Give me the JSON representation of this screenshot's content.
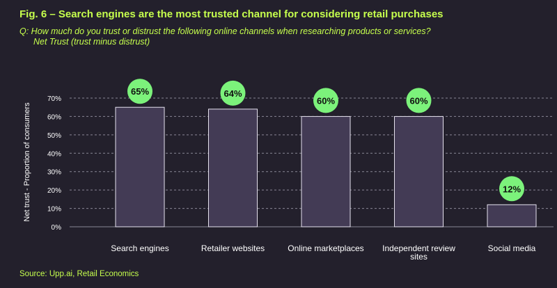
{
  "title": "Fig. 6 – Search engines are the most trusted channel for considering retail purchases",
  "question": {
    "line1": "Q: How much do you trust or distrust the following online channels when researching products or services?",
    "line2": "Net Trust (trust minus distrust)"
  },
  "source": "Source: Upp.ai, Retail Economics",
  "colors": {
    "background": "#23202c",
    "bar": "#433b55",
    "bar_stroke": "#e6e2ee",
    "badge": "#7cf27b",
    "accent_text": "#c6ff4d",
    "axis_text": "#ffffff",
    "grid": "#8a8796"
  },
  "chart_data": {
    "type": "bar",
    "categories": [
      "Search engines",
      "Retailer websites",
      "Online marketplaces",
      "Independent review sites",
      "Social media"
    ],
    "category_lines": [
      [
        "Search engines"
      ],
      [
        "Retailer websites"
      ],
      [
        "Online marketplaces"
      ],
      [
        "Independent review",
        "sites"
      ],
      [
        "Social media"
      ]
    ],
    "values": [
      65,
      64,
      60,
      60,
      12
    ],
    "data_labels": [
      "65%",
      "64%",
      "60%",
      "60%",
      "12%"
    ],
    "ylabel": "Net trust - Proportion of consumers",
    "yticks": [
      "0%",
      "10%",
      "20%",
      "30%",
      "40%",
      "50%",
      "60%",
      "70%"
    ],
    "ylim": [
      0,
      70
    ],
    "grid": true,
    "legend": "none"
  }
}
